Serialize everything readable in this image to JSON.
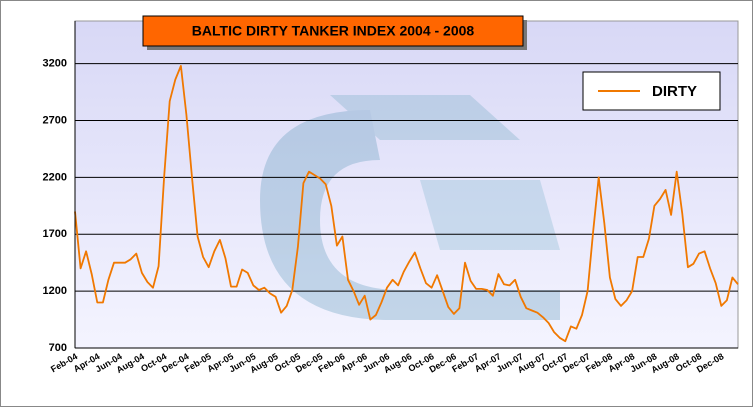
{
  "chart_data": {
    "type": "line",
    "title": "BALTIC DIRTY TANKER INDEX 2004 - 2008",
    "categories": [
      "Feb-04",
      null,
      null,
      null,
      "Apr-04",
      null,
      null,
      null,
      "Jun-04",
      null,
      null,
      null,
      "Aug-04",
      null,
      null,
      null,
      "Oct-04",
      null,
      null,
      null,
      "Dec-04",
      null,
      null,
      null,
      "Feb-05",
      null,
      null,
      null,
      "Apr-05",
      null,
      null,
      null,
      "Jun-05",
      null,
      null,
      null,
      "Aug-05",
      null,
      null,
      null,
      "Oct-05",
      null,
      null,
      null,
      "Dec-05",
      null,
      null,
      null,
      "Feb-06",
      null,
      null,
      null,
      "Apr-06",
      null,
      null,
      null,
      "Jun-06",
      null,
      null,
      null,
      "Aug-06",
      null,
      null,
      null,
      "Oct-06",
      null,
      null,
      null,
      "Dec-06",
      null,
      null,
      null,
      "Feb-07",
      null,
      null,
      null,
      "Apr-07",
      null,
      null,
      null,
      "Jun-07",
      null,
      null,
      null,
      "Aug-07",
      null,
      null,
      null,
      "Oct-07",
      null,
      null,
      null,
      "Dec-07",
      null,
      null,
      null,
      "Feb-08",
      null,
      null,
      null,
      "Apr-08",
      null,
      null,
      null,
      "Jun-08",
      null,
      null,
      null,
      "Aug-08",
      null,
      null,
      null,
      "Oct-08",
      null,
      null,
      null,
      "Dec-08",
      null,
      null,
      null
    ],
    "series": [
      {
        "name": "DIRTY",
        "color": "#f07800",
        "values": [
          1900,
          1400,
          1550,
          1350,
          1100,
          1100,
          1300,
          1450,
          1450,
          1450,
          1480,
          1530,
          1360,
          1280,
          1230,
          1420,
          2200,
          2870,
          3060,
          3180,
          2750,
          2200,
          1680,
          1500,
          1410,
          1550,
          1650,
          1490,
          1240,
          1240,
          1390,
          1360,
          1250,
          1210,
          1230,
          1180,
          1150,
          1010,
          1070,
          1210,
          1590,
          2150,
          2250,
          2220,
          2190,
          2140,
          1950,
          1600,
          1680,
          1300,
          1200,
          1080,
          1160,
          950,
          990,
          1100,
          1230,
          1300,
          1250,
          1370,
          1460,
          1540,
          1400,
          1270,
          1230,
          1340,
          1200,
          1060,
          1000,
          1050,
          1450,
          1290,
          1220,
          1220,
          1210,
          1160,
          1350,
          1260,
          1250,
          1300,
          1150,
          1050,
          1030,
          1010,
          970,
          920,
          840,
          790,
          760,
          890,
          870,
          990,
          1200,
          1720,
          2200,
          1800,
          1320,
          1130,
          1070,
          1120,
          1200,
          1500,
          1500,
          1660,
          1950,
          2010,
          2090,
          1870,
          2250,
          1880,
          1410,
          1440,
          1530,
          1550,
          1400,
          1270,
          1070,
          1120,
          1320,
          1260
        ]
      }
    ],
    "ylim": [
      700,
      3575
    ],
    "yticks": [
      700,
      1200,
      1700,
      2200,
      2700,
      3200
    ],
    "grid": true,
    "legend": "upper right"
  }
}
